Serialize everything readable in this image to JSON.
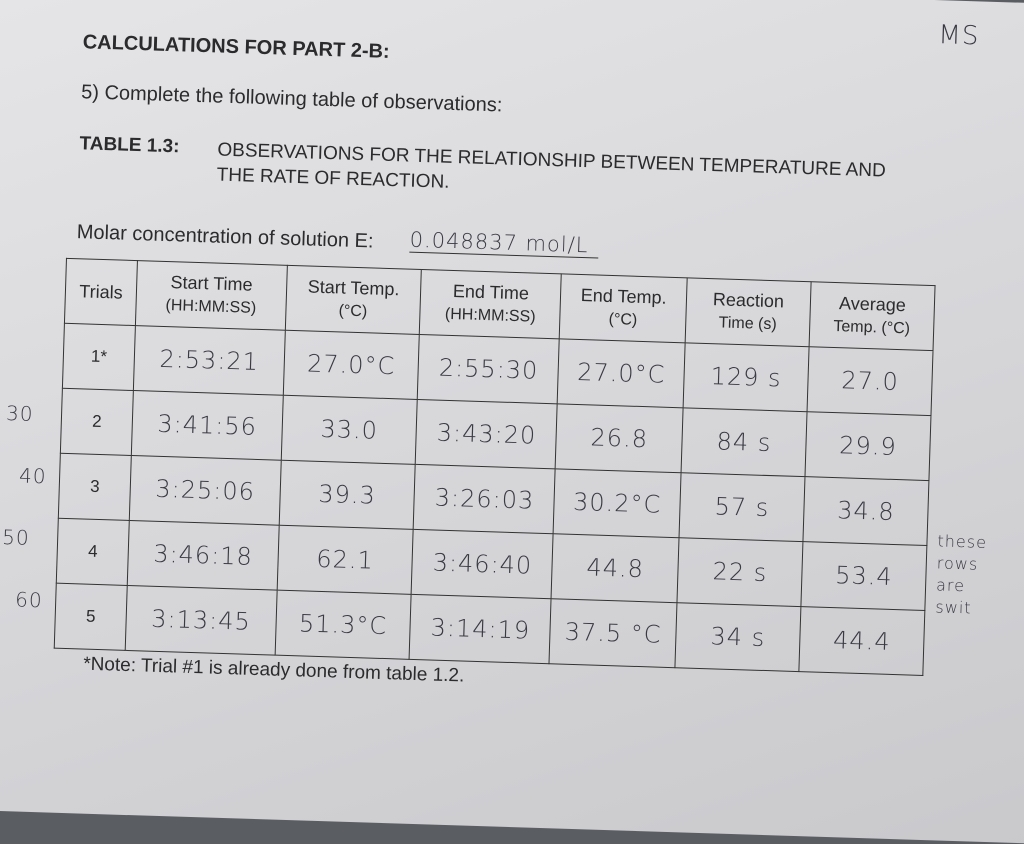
{
  "header": {
    "initials": "MS",
    "heading": "CALCULATIONS FOR PART 2-B:",
    "instruction": "5) Complete the following table of observations:"
  },
  "table_title": {
    "label": "TABLE 1.3:",
    "text": "OBSERVATIONS FOR THE RELATIONSHIP BETWEEN TEMPERATURE AND THE RATE OF REACTION."
  },
  "molar": {
    "label": "Molar concentration of solution E:",
    "value": "0.048837 mol/L"
  },
  "table": {
    "columns": [
      {
        "name": "Trials"
      },
      {
        "name": "Start Time",
        "unit": "(HH:MM:SS)"
      },
      {
        "name": "Start Temp.",
        "unit": "(°C)"
      },
      {
        "name": "End Time",
        "unit": "(HH:MM:SS)"
      },
      {
        "name": "End Temp.",
        "unit": "(°C)"
      },
      {
        "name": "Reaction",
        "unit": "Time (s)"
      },
      {
        "name": "Average",
        "unit": "Temp. (°C)"
      }
    ],
    "rows": [
      [
        "1*",
        "2:53:21",
        "27.0°C",
        "2:55:30",
        "27.0°C",
        "129 s",
        "27.0"
      ],
      [
        "2",
        "3:41:56",
        "33.0",
        "3:43:20",
        "26.8",
        "84 s",
        "29.9"
      ],
      [
        "3",
        "3:25:06",
        "39.3",
        "3:26:03",
        "30.2°C",
        "57 s",
        "34.8"
      ],
      [
        "4",
        "3:46:18",
        "62.1",
        "3:46:40",
        "44.8",
        "22 s",
        "53.4"
      ],
      [
        "5",
        "3:13:45",
        "51.3°C",
        "3:14:19",
        "37.5 °C",
        "34 s",
        "44.4"
      ]
    ]
  },
  "margin_notes": [
    "30",
    "40",
    "50",
    "60"
  ],
  "side_note": "these rows are swit",
  "footnote": "*Note: Trial #1 is already done from table 1.2."
}
